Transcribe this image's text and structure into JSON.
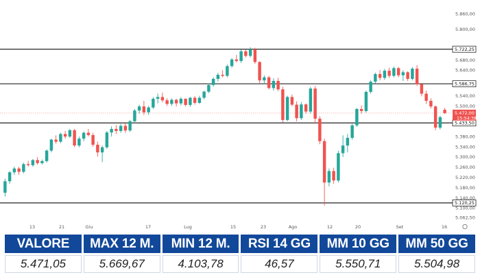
{
  "chart_data": {
    "type": "candlestick",
    "x_ticks": [
      "13",
      "21",
      "Giu",
      "17",
      "Lug",
      "15",
      "23",
      "Ago",
      "12",
      "20",
      "Set",
      "16"
    ],
    "y_ticks": [
      "5.860,00",
      "5.800,00",
      "5.680,00",
      "5.640,00",
      "5.540,00",
      "5.500,00",
      "5.380,00",
      "5.340,00",
      "5.300,00",
      "5.260,00",
      "5.220,00",
      "5.180,00",
      "5.140,00",
      "5.100,00",
      "5.062,50"
    ],
    "ylim": [
      5050,
      5880
    ],
    "levels": [
      {
        "value": 5722.25,
        "label": "5.722,25"
      },
      {
        "value": 5586.75,
        "label": "5.586,75"
      },
      {
        "value": 5433.5,
        "label": "5.433,50"
      },
      {
        "value": 5120.25,
        "label": "5.120,25"
      }
    ],
    "last_price": {
      "value": 5472.0,
      "label": "5.472,00",
      "sublabel": "15:54:38"
    },
    "colors": {
      "up": "#26a69a",
      "down": "#ef5350",
      "level": "#222222"
    },
    "candles": [
      {
        "o": 5160,
        "h": 5215,
        "l": 5145,
        "c": 5205
      },
      {
        "o": 5205,
        "h": 5245,
        "l": 5195,
        "c": 5240
      },
      {
        "o": 5240,
        "h": 5262,
        "l": 5230,
        "c": 5255
      },
      {
        "o": 5255,
        "h": 5262,
        "l": 5230,
        "c": 5242
      },
      {
        "o": 5242,
        "h": 5278,
        "l": 5236,
        "c": 5272
      },
      {
        "o": 5272,
        "h": 5285,
        "l": 5262,
        "c": 5268
      },
      {
        "o": 5268,
        "h": 5292,
        "l": 5262,
        "c": 5288
      },
      {
        "o": 5288,
        "h": 5300,
        "l": 5270,
        "c": 5276
      },
      {
        "o": 5276,
        "h": 5290,
        "l": 5270,
        "c": 5284
      },
      {
        "o": 5284,
        "h": 5330,
        "l": 5278,
        "c": 5325
      },
      {
        "o": 5325,
        "h": 5372,
        "l": 5318,
        "c": 5368
      },
      {
        "o": 5368,
        "h": 5385,
        "l": 5352,
        "c": 5360
      },
      {
        "o": 5360,
        "h": 5395,
        "l": 5354,
        "c": 5390
      },
      {
        "o": 5390,
        "h": 5402,
        "l": 5372,
        "c": 5380
      },
      {
        "o": 5380,
        "h": 5410,
        "l": 5375,
        "c": 5405
      },
      {
        "o": 5405,
        "h": 5410,
        "l": 5338,
        "c": 5345
      },
      {
        "o": 5345,
        "h": 5380,
        "l": 5338,
        "c": 5372
      },
      {
        "o": 5372,
        "h": 5400,
        "l": 5362,
        "c": 5395
      },
      {
        "o": 5395,
        "h": 5410,
        "l": 5380,
        "c": 5386
      },
      {
        "o": 5386,
        "h": 5395,
        "l": 5340,
        "c": 5348
      },
      {
        "o": 5348,
        "h": 5360,
        "l": 5302,
        "c": 5318
      },
      {
        "o": 5318,
        "h": 5345,
        "l": 5280,
        "c": 5338
      },
      {
        "o": 5338,
        "h": 5402,
        "l": 5332,
        "c": 5396
      },
      {
        "o": 5396,
        "h": 5420,
        "l": 5380,
        "c": 5410
      },
      {
        "o": 5410,
        "h": 5425,
        "l": 5390,
        "c": 5402
      },
      {
        "o": 5402,
        "h": 5430,
        "l": 5395,
        "c": 5422
      },
      {
        "o": 5422,
        "h": 5432,
        "l": 5395,
        "c": 5404
      },
      {
        "o": 5404,
        "h": 5445,
        "l": 5398,
        "c": 5440
      },
      {
        "o": 5440,
        "h": 5488,
        "l": 5432,
        "c": 5482
      },
      {
        "o": 5482,
        "h": 5505,
        "l": 5470,
        "c": 5498
      },
      {
        "o": 5498,
        "h": 5520,
        "l": 5465,
        "c": 5475
      },
      {
        "o": 5475,
        "h": 5500,
        "l": 5465,
        "c": 5494
      },
      {
        "o": 5494,
        "h": 5535,
        "l": 5488,
        "c": 5528
      },
      {
        "o": 5528,
        "h": 5548,
        "l": 5510,
        "c": 5535
      },
      {
        "o": 5535,
        "h": 5552,
        "l": 5514,
        "c": 5522
      },
      {
        "o": 5522,
        "h": 5530,
        "l": 5500,
        "c": 5508
      },
      {
        "o": 5508,
        "h": 5530,
        "l": 5500,
        "c": 5524
      },
      {
        "o": 5524,
        "h": 5528,
        "l": 5498,
        "c": 5510
      },
      {
        "o": 5510,
        "h": 5535,
        "l": 5502,
        "c": 5528
      },
      {
        "o": 5528,
        "h": 5530,
        "l": 5498,
        "c": 5504
      },
      {
        "o": 5504,
        "h": 5535,
        "l": 5496,
        "c": 5532
      },
      {
        "o": 5532,
        "h": 5538,
        "l": 5505,
        "c": 5512
      },
      {
        "o": 5512,
        "h": 5540,
        "l": 5508,
        "c": 5532
      },
      {
        "o": 5532,
        "h": 5560,
        "l": 5526,
        "c": 5556
      },
      {
        "o": 5556,
        "h": 5588,
        "l": 5550,
        "c": 5582
      },
      {
        "o": 5582,
        "h": 5612,
        "l": 5575,
        "c": 5606
      },
      {
        "o": 5606,
        "h": 5630,
        "l": 5596,
        "c": 5622
      },
      {
        "o": 5622,
        "h": 5640,
        "l": 5612,
        "c": 5618
      },
      {
        "o": 5618,
        "h": 5662,
        "l": 5612,
        "c": 5656
      },
      {
        "o": 5656,
        "h": 5688,
        "l": 5650,
        "c": 5682
      },
      {
        "o": 5682,
        "h": 5700,
        "l": 5670,
        "c": 5676
      },
      {
        "o": 5676,
        "h": 5720,
        "l": 5668,
        "c": 5714
      },
      {
        "o": 5714,
        "h": 5720,
        "l": 5690,
        "c": 5696
      },
      {
        "o": 5696,
        "h": 5730,
        "l": 5690,
        "c": 5722
      },
      {
        "o": 5722,
        "h": 5728,
        "l": 5665,
        "c": 5672
      },
      {
        "o": 5672,
        "h": 5675,
        "l": 5590,
        "c": 5600
      },
      {
        "o": 5600,
        "h": 5620,
        "l": 5585,
        "c": 5612
      },
      {
        "o": 5612,
        "h": 5618,
        "l": 5565,
        "c": 5570
      },
      {
        "o": 5570,
        "h": 5608,
        "l": 5560,
        "c": 5598
      },
      {
        "o": 5598,
        "h": 5610,
        "l": 5558,
        "c": 5565
      },
      {
        "o": 5565,
        "h": 5575,
        "l": 5435,
        "c": 5445
      },
      {
        "o": 5445,
        "h": 5540,
        "l": 5440,
        "c": 5535
      },
      {
        "o": 5535,
        "h": 5545,
        "l": 5498,
        "c": 5505
      },
      {
        "o": 5505,
        "h": 5518,
        "l": 5440,
        "c": 5452
      },
      {
        "o": 5452,
        "h": 5515,
        "l": 5445,
        "c": 5506
      },
      {
        "o": 5506,
        "h": 5510,
        "l": 5470,
        "c": 5478
      },
      {
        "o": 5478,
        "h": 5575,
        "l": 5470,
        "c": 5568
      },
      {
        "o": 5568,
        "h": 5578,
        "l": 5430,
        "c": 5450
      },
      {
        "o": 5450,
        "h": 5460,
        "l": 5350,
        "c": 5362
      },
      {
        "o": 5362,
        "h": 5372,
        "l": 5110,
        "c": 5200
      },
      {
        "o": 5200,
        "h": 5255,
        "l": 5185,
        "c": 5245
      },
      {
        "o": 5245,
        "h": 5258,
        "l": 5195,
        "c": 5208
      },
      {
        "o": 5208,
        "h": 5325,
        "l": 5200,
        "c": 5315
      },
      {
        "o": 5315,
        "h": 5385,
        "l": 5300,
        "c": 5345
      },
      {
        "o": 5345,
        "h": 5390,
        "l": 5318,
        "c": 5375
      },
      {
        "o": 5375,
        "h": 5430,
        "l": 5368,
        "c": 5424
      },
      {
        "o": 5424,
        "h": 5492,
        "l": 5418,
        "c": 5488
      },
      {
        "o": 5488,
        "h": 5502,
        "l": 5470,
        "c": 5480
      },
      {
        "o": 5480,
        "h": 5560,
        "l": 5474,
        "c": 5555
      },
      {
        "o": 5555,
        "h": 5600,
        "l": 5548,
        "c": 5595
      },
      {
        "o": 5595,
        "h": 5630,
        "l": 5588,
        "c": 5625
      },
      {
        "o": 5625,
        "h": 5640,
        "l": 5600,
        "c": 5610
      },
      {
        "o": 5610,
        "h": 5645,
        "l": 5602,
        "c": 5638
      },
      {
        "o": 5638,
        "h": 5650,
        "l": 5610,
        "c": 5618
      },
      {
        "o": 5618,
        "h": 5655,
        "l": 5612,
        "c": 5648
      },
      {
        "o": 5648,
        "h": 5652,
        "l": 5612,
        "c": 5620
      },
      {
        "o": 5620,
        "h": 5640,
        "l": 5598,
        "c": 5632
      },
      {
        "o": 5632,
        "h": 5636,
        "l": 5598,
        "c": 5606
      },
      {
        "o": 5606,
        "h": 5652,
        "l": 5600,
        "c": 5646
      },
      {
        "o": 5646,
        "h": 5660,
        "l": 5578,
        "c": 5585
      },
      {
        "o": 5585,
        "h": 5590,
        "l": 5538,
        "c": 5548
      },
      {
        "o": 5548,
        "h": 5560,
        "l": 5508,
        "c": 5520
      },
      {
        "o": 5520,
        "h": 5530,
        "l": 5490,
        "c": 5498
      },
      {
        "o": 5498,
        "h": 5502,
        "l": 5405,
        "c": 5415
      },
      {
        "o": 5415,
        "h": 5462,
        "l": 5408,
        "c": 5456
      },
      {
        "o": 5485,
        "h": 5492,
        "l": 5468,
        "c": 5472
      }
    ]
  },
  "table": {
    "headers": [
      "VALORE",
      "MAX 12 M.",
      "MIN 12 M.",
      "RSI 14 GG",
      "MM 10 GG",
      "MM 50 GG"
    ],
    "values": [
      "5.471,05",
      "5.669,67",
      "4.103,78",
      "46,57",
      "5.550,71",
      "5.504,98"
    ]
  }
}
